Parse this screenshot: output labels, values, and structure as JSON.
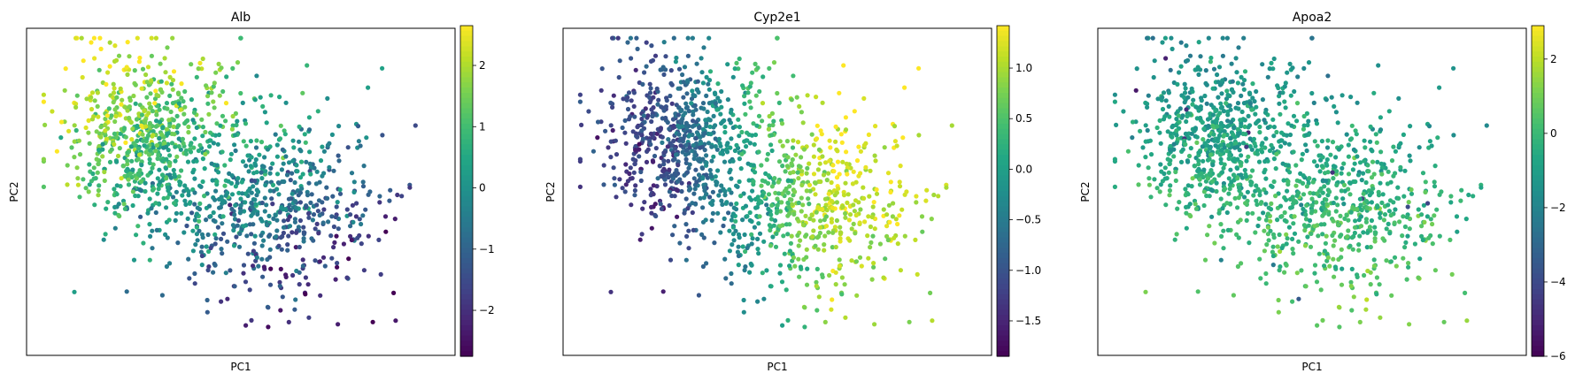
{
  "chart_data": [
    {
      "type": "scatter",
      "title": "Alb",
      "xlabel": "PC1",
      "ylabel": "PC2",
      "colormap": "viridis",
      "colorbar": {
        "range": [
          -2.75,
          2.65
        ],
        "ticks": [
          -2,
          -1,
          0,
          1,
          2
        ],
        "tick_labels": [
          "−2",
          "−1",
          "0",
          "1",
          "2"
        ]
      },
      "grid": false
    },
    {
      "type": "scatter",
      "title": "Cyp2e1",
      "xlabel": "PC1",
      "ylabel": "PC2",
      "colormap": "viridis",
      "colorbar": {
        "range": [
          -1.85,
          1.42
        ],
        "ticks": [
          -1.5,
          -1.0,
          -0.5,
          0.0,
          0.5,
          1.0
        ],
        "tick_labels": [
          "−1.5",
          "−1.0",
          "−0.5",
          "0.0",
          "0.5",
          "1.0"
        ]
      },
      "grid": false
    },
    {
      "type": "scatter",
      "title": "Apoa2",
      "xlabel": "PC1",
      "ylabel": "PC2",
      "colormap": "viridis",
      "colorbar": {
        "range": [
          -6.0,
          2.9
        ],
        "ticks": [
          -6,
          -4,
          -2,
          0,
          2
        ],
        "tick_labels": [
          "−6",
          "−4",
          "−2",
          "0",
          "2"
        ]
      },
      "grid": false
    }
  ]
}
